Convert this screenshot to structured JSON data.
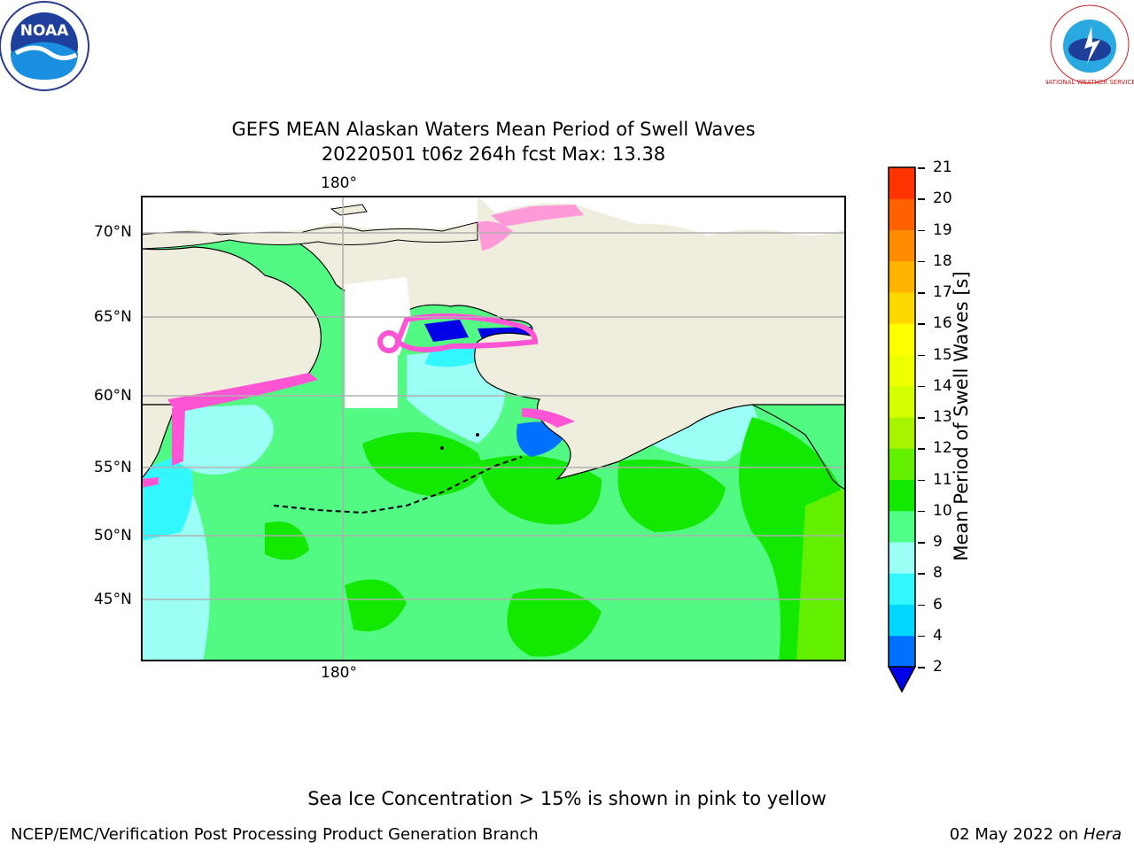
{
  "header": {
    "title_line1": "GEFS MEAN Alaskan Waters Mean Period of Swell Waves",
    "title_line2": "20220501 t06z 264h fcst   Max: 13.38"
  },
  "logos": {
    "left": "NOAA",
    "right": "NATIONAL WEATHER SERVICE"
  },
  "map": {
    "lon_labels": [
      "180°",
      "180°"
    ],
    "lat_labels": [
      "70°N",
      "65°N",
      "60°N",
      "55°N",
      "50°N",
      "45°N"
    ],
    "colors": {
      "land": "#efedde",
      "coast": "#000000",
      "grid": "#b0b0b0",
      "ice": "#ff55d4"
    }
  },
  "colorbar": {
    "label": "Mean Period of Swell Waves [s]",
    "ticks": [
      "2",
      "4",
      "6",
      "8",
      "9",
      "10",
      "11",
      "12",
      "13",
      "14",
      "15",
      "16",
      "17",
      "18",
      "19",
      "20",
      "21"
    ],
    "colors": [
      "#0070ff",
      "#00d8ff",
      "#33f7ff",
      "#9cfff6",
      "#50ff85",
      "#12e800",
      "#62f000",
      "#a8f400",
      "#d4ff00",
      "#eeff00",
      "#ffff00",
      "#ffd800",
      "#ffb400",
      "#ff8c00",
      "#ff6000",
      "#ff3400",
      "#ff0000"
    ],
    "under_color": "#0000e8"
  },
  "footer": {
    "note": "Sea Ice Concentration > 15% is shown in pink to yellow",
    "credit": "NCEP/EMC/Verification Post Processing Product Generation Branch",
    "date": "02 May 2022 on",
    "machine": "Hera"
  }
}
